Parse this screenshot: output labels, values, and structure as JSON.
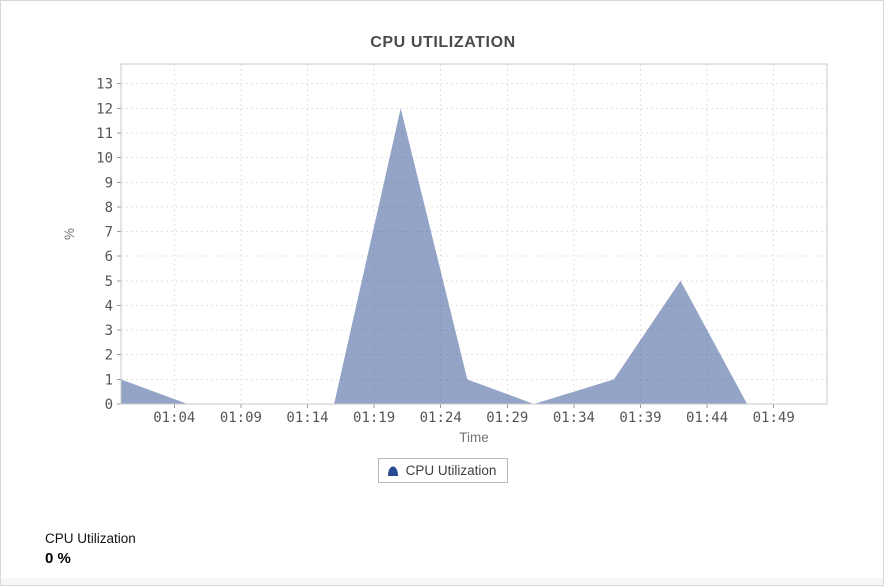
{
  "window": {
    "background": "#ffffff",
    "border_color": "#d7d7d7"
  },
  "chart_data": {
    "type": "area",
    "title": "CPU UTILIZATION",
    "xlabel": "Time",
    "ylabel": "%",
    "x_range": [
      "01:00",
      "01:53"
    ],
    "ylim": [
      0,
      13.8
    ],
    "x_ticks": [
      "01:04",
      "01:09",
      "01:14",
      "01:19",
      "01:24",
      "01:29",
      "01:34",
      "01:39",
      "01:44",
      "01:49"
    ],
    "y_ticks": [
      0,
      1,
      2,
      3,
      4,
      5,
      6,
      7,
      8,
      9,
      10,
      11,
      12,
      13
    ],
    "grid": "dashed",
    "legend_position": "bottom",
    "series": [
      {
        "name": "CPU Utilization",
        "points": [
          {
            "time": "01:00",
            "value": 1
          },
          {
            "time": "01:05",
            "value": 0
          },
          {
            "time": "01:16",
            "value": 0
          },
          {
            "time": "01:21",
            "value": 12
          },
          {
            "time": "01:26",
            "value": 1
          },
          {
            "time": "01:31",
            "value": 0
          },
          {
            "time": "01:37",
            "value": 1
          },
          {
            "time": "01:42",
            "value": 5
          },
          {
            "time": "01:47",
            "value": 0
          }
        ]
      }
    ],
    "colors": {
      "series": "#274A90",
      "fill_opacity": 0.5,
      "grid": "#e2e2e2",
      "plot_border": "#c9c9c9",
      "tick": "#999999",
      "tick_label": "#555555",
      "title": "#4a4a4a",
      "axis_label": "#757575",
      "legend_text": "#3f3f3f",
      "legend_border": "#b9b9b9"
    }
  },
  "footer": {
    "metric_label": "CPU Utilization",
    "metric_value": "0 %"
  }
}
